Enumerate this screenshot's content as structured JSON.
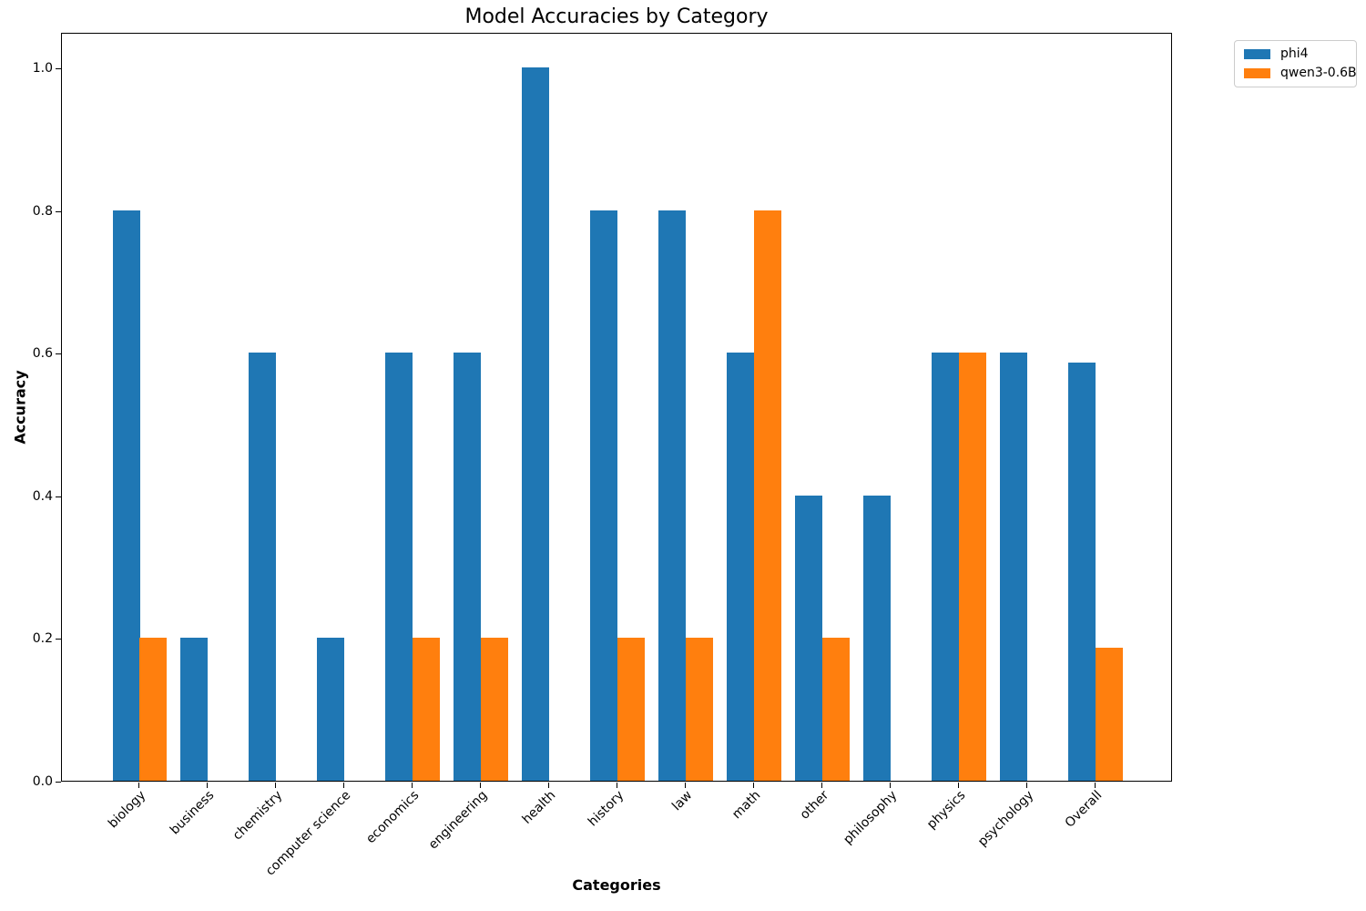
{
  "title": "Model Accuracies by Category",
  "x_axis_title": "Categories",
  "y_axis_title": "Accuracy",
  "legend": {
    "entries": [
      {
        "label": "phi4",
        "color": "#1f77b4"
      },
      {
        "label": "qwen3-0.6B",
        "color": "#ff7f0e"
      }
    ]
  },
  "chart_data": {
    "type": "bar",
    "title": "Model Accuracies by Category",
    "xlabel": "Categories",
    "ylabel": "Accuracy",
    "grid": false,
    "legend_position": "upper right, outside axes",
    "ylim": [
      0,
      1.05
    ],
    "yticks": [
      0.0,
      0.2,
      0.4,
      0.6,
      0.8,
      1.0
    ],
    "bar_width_units": 0.4,
    "xtick_rotation_deg": 45,
    "categories": [
      "biology",
      "business",
      "chemistry",
      "computer science",
      "economics",
      "engineering",
      "health",
      "history",
      "law",
      "math",
      "other",
      "philosophy",
      "physics",
      "psychology",
      "Overall"
    ],
    "series": [
      {
        "name": "phi4",
        "color": "#1f77b4",
        "values": [
          0.8,
          0.2,
          0.6,
          0.2,
          0.6,
          0.6,
          1.0,
          0.8,
          0.8,
          0.6,
          0.4,
          0.4,
          0.6,
          0.6,
          0.586
        ]
      },
      {
        "name": "qwen3-0.6B",
        "color": "#ff7f0e",
        "values": [
          0.2,
          0.0,
          0.0,
          0.0,
          0.2,
          0.2,
          0.0,
          0.2,
          0.2,
          0.8,
          0.2,
          0.0,
          0.6,
          0.0,
          0.186
        ]
      }
    ]
  }
}
